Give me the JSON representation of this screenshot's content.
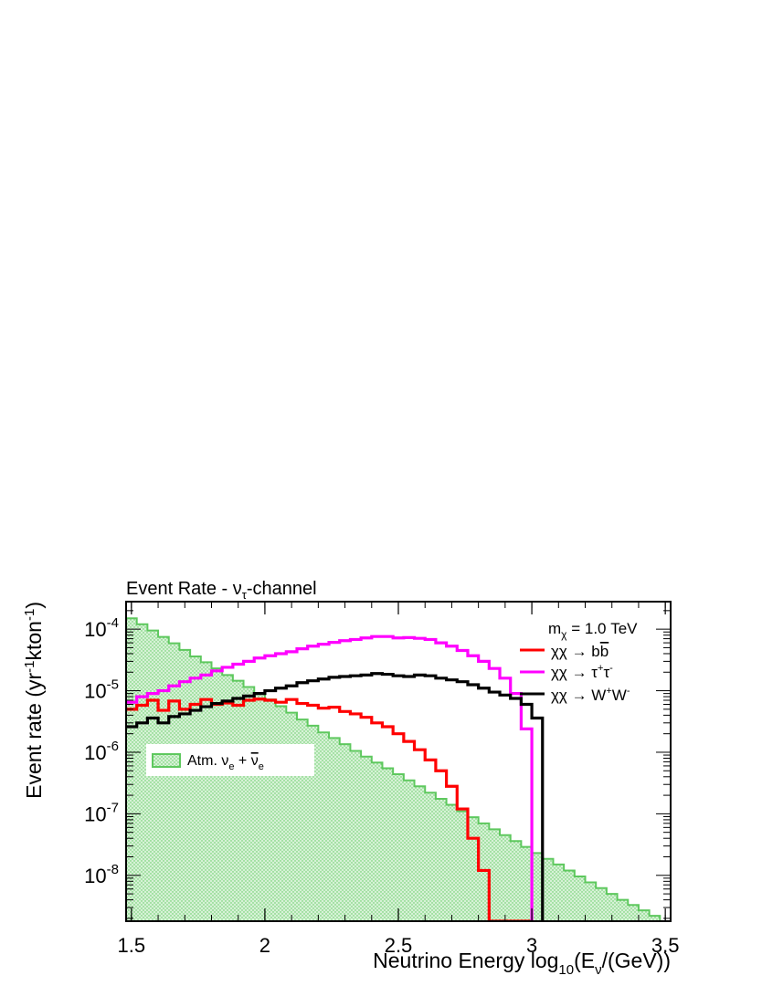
{
  "chart_data": {
    "type": "line",
    "title_parts": [
      "Event Rate - ",
      "ν",
      "τ",
      "-channel"
    ],
    "xlabel_parts": [
      "Neutrino Energy log",
      "10",
      "(E",
      "ν",
      "/(GeV))"
    ],
    "ylabel_parts": [
      "Event rate (yr",
      "-1",
      "kton",
      "-1",
      ")"
    ],
    "xlim": [
      1.48,
      3.52
    ],
    "ylim": [
      1.8e-09,
      0.00028
    ],
    "yscale": "log",
    "x_ticks": [
      "1.5",
      "2",
      "2.5",
      "3",
      "3.5"
    ],
    "x_tick_values": [
      1.5,
      2,
      2.5,
      3,
      3.5
    ],
    "y_ticks": [
      {
        "base": "10",
        "exp": "-4",
        "value": 0.0001
      },
      {
        "base": "10",
        "exp": "-5",
        "value": 1e-05
      },
      {
        "base": "10",
        "exp": "-6",
        "value": 1e-06
      },
      {
        "base": "10",
        "exp": "-7",
        "value": 1e-07
      },
      {
        "base": "10",
        "exp": "-8",
        "value": 1e-08
      }
    ],
    "mass_label": {
      "sym": "m",
      "sub": "χ",
      "text": " =   1.0 TeV"
    },
    "bin_edges": [
      1.48,
      1.52,
      1.56,
      1.6,
      1.64,
      1.68,
      1.72,
      1.76,
      1.8,
      1.84,
      1.88,
      1.92,
      1.96,
      2.0,
      2.04,
      2.08,
      2.12,
      2.16,
      2.2,
      2.24,
      2.28,
      2.32,
      2.36,
      2.4,
      2.44,
      2.48,
      2.52,
      2.56,
      2.6,
      2.64,
      2.68,
      2.72,
      2.76,
      2.8,
      2.84,
      2.88,
      2.92,
      2.96,
      3.0,
      3.04,
      3.08,
      3.12,
      3.16,
      3.2,
      3.24,
      3.28,
      3.32,
      3.36,
      3.4,
      3.44,
      3.48,
      3.52
    ],
    "series": [
      {
        "key": "atm",
        "legend_parts": [
          "Atm. ν",
          "e",
          " + ",
          "ν",
          "e"
        ],
        "color": "#5ec85e",
        "fill": "#c8ecc8",
        "values": [
          0.00015,
          0.00012,
          9.5e-05,
          7.5e-05,
          5.9e-05,
          4.6e-05,
          3.6e-05,
          2.9e-05,
          2.3e-05,
          1.8e-05,
          1.45e-05,
          1.15e-05,
          9e-06,
          7.2e-06,
          5.6e-06,
          4.4e-06,
          3.4e-06,
          2.7e-06,
          2.1e-06,
          1.7e-06,
          1.35e-06,
          1.05e-06,
          8.5e-07,
          6.8e-07,
          5.5e-07,
          4.4e-07,
          3.5e-07,
          2.8e-07,
          2.2e-07,
          1.75e-07,
          1.4e-07,
          1.1e-07,
          8.8e-08,
          7e-08,
          5.6e-08,
          4.5e-08,
          3.6e-08,
          2.9e-08,
          2.3e-08,
          1.85e-08,
          1.5e-08,
          1.2e-08,
          9.6e-09,
          7.7e-09,
          6.2e-09,
          5e-09,
          4e-09,
          3.3e-09,
          2.7e-09,
          2.2e-09,
          1.8e-09
        ]
      },
      {
        "key": "bb",
        "legend_parts": [
          "χχ → b",
          "b"
        ],
        "color": "#ff0000",
        "values": [
          5e-06,
          5.8e-06,
          7e-06,
          4.8e-06,
          6.8e-06,
          5e-06,
          6e-06,
          7.2e-06,
          6e-06,
          6.3e-06,
          5.8e-06,
          7e-06,
          7.3e-06,
          7e-06,
          6.5e-06,
          7.2e-06,
          6.2e-06,
          5.8e-06,
          5.2e-06,
          5.4e-06,
          4.6e-06,
          4.2e-06,
          3.7e-06,
          3e-06,
          2.6e-06,
          2e-06,
          1.5e-06,
          1.1e-06,
          7.5e-07,
          5e-07,
          2.8e-07,
          1.2e-07,
          4e-08,
          1.2e-08,
          1.8e-09,
          1.8e-09,
          1.8e-09,
          1.8e-09
        ]
      },
      {
        "key": "tautau",
        "legend_parts": [
          "χχ → τ",
          "+",
          "τ",
          "-"
        ],
        "color": "#ff00ff",
        "values": [
          6.5e-06,
          8e-06,
          9e-06,
          1e-05,
          1.2e-05,
          1.4e-05,
          1.6e-05,
          1.8e-05,
          2.1e-05,
          2.4e-05,
          2.7e-05,
          3e-05,
          3.4e-05,
          3.7e-05,
          4e-05,
          4.3e-05,
          4.8e-05,
          5.3e-05,
          5.7e-05,
          6.1e-05,
          6.5e-05,
          6.8e-05,
          7.2e-05,
          7.6e-05,
          7.6e-05,
          7.2e-05,
          7.3e-05,
          7.1e-05,
          6.8e-05,
          6e-05,
          5.3e-05,
          4.5e-05,
          3.7e-05,
          3e-05,
          2.3e-05,
          1.6e-05,
          9e-06,
          2.4e-06
        ]
      },
      {
        "key": "ww",
        "legend_parts": [
          "χχ → W",
          "+",
          "W",
          "-"
        ],
        "color": "#000000",
        "values": [
          2.6e-06,
          3e-06,
          3.6e-06,
          3e-06,
          3.8e-06,
          4.2e-06,
          4.8e-06,
          5.5e-06,
          6.2e-06,
          6.8e-06,
          7.5e-06,
          8.2e-06,
          9e-06,
          1e-05,
          1.1e-05,
          1.2e-05,
          1.35e-05,
          1.45e-05,
          1.55e-05,
          1.65e-05,
          1.7e-05,
          1.75e-05,
          1.8e-05,
          1.9e-05,
          1.85e-05,
          1.75e-05,
          1.7e-05,
          1.8e-05,
          1.75e-05,
          1.6e-05,
          1.5e-05,
          1.4e-05,
          1.25e-05,
          1.1e-05,
          9.5e-06,
          8.5e-06,
          7.5e-06,
          6e-06,
          3.6e-06
        ]
      }
    ]
  }
}
